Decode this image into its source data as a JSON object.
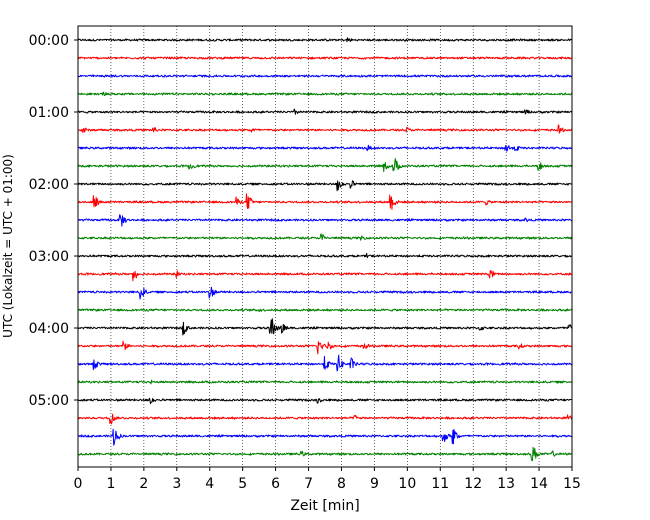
{
  "chart_data": {
    "type": "line",
    "title": "",
    "xlabel": "Zeit  [min]",
    "ylabel": "UTC (Lokalzeit = UTC + 01:00)",
    "xlim": [
      0,
      15
    ],
    "x_ticks": [
      "0",
      "1",
      "2",
      "3",
      "4",
      "5",
      "6",
      "7",
      "8",
      "9",
      "10",
      "11",
      "12",
      "13",
      "14",
      "15"
    ],
    "y_tick_labels": [
      "00:00",
      "01:00",
      "02:00",
      "03:00",
      "04:00",
      "05:00"
    ],
    "grid_x": true,
    "trace_interval_min": 15,
    "trace_colors": [
      "#000000",
      "#ff0000",
      "#0000ff",
      "#008000"
    ],
    "traces": [
      {
        "start": "00:00",
        "color": "#000000",
        "events": [
          {
            "t": 8.2,
            "amp": 0.5
          }
        ]
      },
      {
        "start": "00:15",
        "color": "#ff0000",
        "events": []
      },
      {
        "start": "00:30",
        "color": "#0000ff",
        "events": []
      },
      {
        "start": "00:45",
        "color": "#008000",
        "events": [
          {
            "t": 0.8,
            "amp": 0.4
          }
        ]
      },
      {
        "start": "01:00",
        "color": "#000000",
        "events": [
          {
            "t": 6.6,
            "amp": 0.5
          },
          {
            "t": 13.6,
            "amp": 0.5
          }
        ]
      },
      {
        "start": "01:15",
        "color": "#ff0000",
        "events": [
          {
            "t": 0.15,
            "amp": 0.7
          },
          {
            "t": 2.3,
            "amp": 0.5
          },
          {
            "t": 5.3,
            "amp": 0.5
          },
          {
            "t": 10.0,
            "amp": 0.5
          },
          {
            "t": 14.6,
            "amp": 0.8
          }
        ]
      },
      {
        "start": "01:30",
        "color": "#0000ff",
        "events": [
          {
            "t": 8.8,
            "amp": 0.5
          },
          {
            "t": 13.0,
            "amp": 1.0
          },
          {
            "t": 13.3,
            "amp": 0.6
          }
        ]
      },
      {
        "start": "01:45",
        "color": "#008000",
        "events": [
          {
            "t": 3.4,
            "amp": 0.8
          },
          {
            "t": 9.3,
            "amp": 0.9
          },
          {
            "t": 9.6,
            "amp": 1.6
          },
          {
            "t": 14.0,
            "amp": 0.8
          }
        ]
      },
      {
        "start": "02:00",
        "color": "#000000",
        "events": [
          {
            "t": 7.9,
            "amp": 1.2
          },
          {
            "t": 8.3,
            "amp": 0.7
          }
        ]
      },
      {
        "start": "02:15",
        "color": "#ff0000",
        "events": [
          {
            "t": 0.5,
            "amp": 1.2
          },
          {
            "t": 4.8,
            "amp": 0.8
          },
          {
            "t": 5.15,
            "amp": 1.4
          },
          {
            "t": 9.5,
            "amp": 1.6
          },
          {
            "t": 12.4,
            "amp": 0.5
          }
        ]
      },
      {
        "start": "02:30",
        "color": "#0000ff",
        "events": [
          {
            "t": 1.3,
            "amp": 1.4
          },
          {
            "t": 13.6,
            "amp": 0.4
          }
        ]
      },
      {
        "start": "02:45",
        "color": "#008000",
        "events": [
          {
            "t": 7.4,
            "amp": 0.8
          },
          {
            "t": 8.6,
            "amp": 0.5
          }
        ]
      },
      {
        "start": "03:00",
        "color": "#000000",
        "events": [
          {
            "t": 8.8,
            "amp": 0.4
          }
        ]
      },
      {
        "start": "03:15",
        "color": "#ff0000",
        "events": [
          {
            "t": 1.7,
            "amp": 1.1
          },
          {
            "t": 3.0,
            "amp": 0.6
          },
          {
            "t": 12.5,
            "amp": 1.0
          }
        ]
      },
      {
        "start": "03:30",
        "color": "#0000ff",
        "events": [
          {
            "t": 1.9,
            "amp": 1.4
          },
          {
            "t": 4.0,
            "amp": 1.3
          }
        ]
      },
      {
        "start": "03:45",
        "color": "#008000",
        "events": [
          {
            "t": 5.5,
            "amp": 0.4
          }
        ]
      },
      {
        "start": "04:00",
        "color": "#000000",
        "events": [
          {
            "t": 3.2,
            "amp": 1.1
          },
          {
            "t": 5.85,
            "amp": 2.4
          },
          {
            "t": 6.2,
            "amp": 1.0
          },
          {
            "t": 12.2,
            "amp": 0.6
          },
          {
            "t": 14.9,
            "amp": 0.8
          }
        ]
      },
      {
        "start": "04:15",
        "color": "#ff0000",
        "events": [
          {
            "t": 1.4,
            "amp": 0.8
          },
          {
            "t": 7.3,
            "amp": 1.4
          },
          {
            "t": 7.6,
            "amp": 0.8
          },
          {
            "t": 8.7,
            "amp": 0.7
          },
          {
            "t": 13.4,
            "amp": 0.6
          }
        ]
      },
      {
        "start": "04:30",
        "color": "#0000ff",
        "events": [
          {
            "t": 0.5,
            "amp": 0.9
          },
          {
            "t": 7.5,
            "amp": 1.2
          },
          {
            "t": 7.9,
            "amp": 1.6
          },
          {
            "t": 8.3,
            "amp": 1.0
          }
        ]
      },
      {
        "start": "04:45",
        "color": "#008000",
        "events": [
          {
            "t": 2.2,
            "amp": 0.4
          }
        ]
      },
      {
        "start": "05:00",
        "color": "#000000",
        "events": [
          {
            "t": 2.2,
            "amp": 0.8
          },
          {
            "t": 7.3,
            "amp": 0.6
          }
        ]
      },
      {
        "start": "05:15",
        "color": "#ff0000",
        "events": [
          {
            "t": 1.0,
            "amp": 1.1
          },
          {
            "t": 8.4,
            "amp": 0.6
          },
          {
            "t": 14.9,
            "amp": 0.5
          }
        ]
      },
      {
        "start": "05:30",
        "color": "#0000ff",
        "events": [
          {
            "t": 1.1,
            "amp": 1.6
          },
          {
            "t": 11.1,
            "amp": 1.2
          },
          {
            "t": 11.4,
            "amp": 1.5
          }
        ]
      },
      {
        "start": "05:45",
        "color": "#008000",
        "events": [
          {
            "t": 6.8,
            "amp": 0.5
          },
          {
            "t": 13.8,
            "amp": 1.7
          },
          {
            "t": 14.4,
            "amp": 0.6
          }
        ]
      }
    ]
  }
}
